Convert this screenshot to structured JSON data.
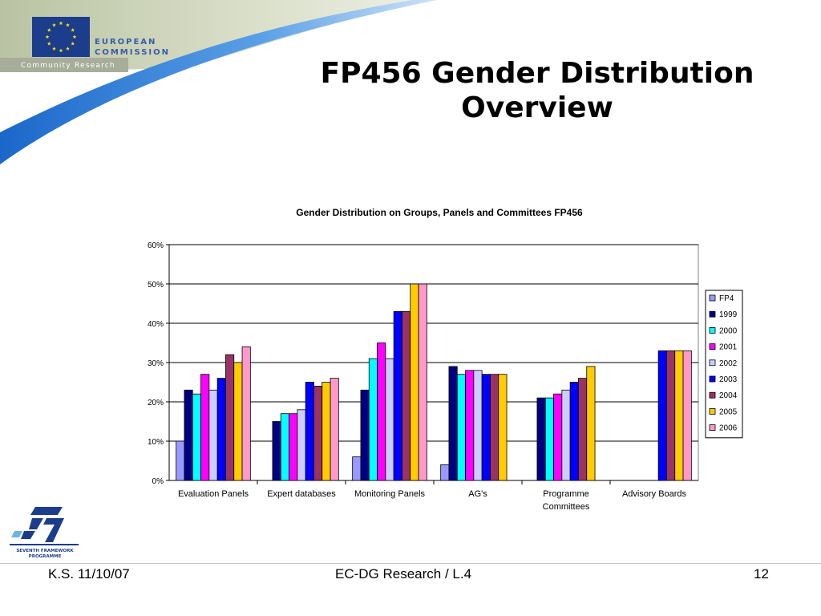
{
  "header": {
    "org_line1": "EUROPEAN",
    "org_line2": "COMMISSION",
    "tagline": "Community Research"
  },
  "slide": {
    "title_line1": "FP456 Gender Distribution",
    "title_line2": "Overview"
  },
  "logo": {
    "fp7_line1": "SEVENTH FRAMEWORK",
    "fp7_line2": "PROGRAMME"
  },
  "footer": {
    "left": "K.S. 11/10/07",
    "center": "EC-DG Research / L.4",
    "right": "12"
  },
  "colors": {
    "ec_blue": "#1b3d8c",
    "flag_star": "#ffdd00"
  },
  "chart_data": {
    "type": "bar",
    "title": "Gender Distribution on Groups, Panels and Committees FP456",
    "categories": [
      "Evaluation Panels",
      "Expert databases",
      "Monitoring Panels",
      "AG's",
      "Programme Committees",
      "Advisory Boards"
    ],
    "category_lines": [
      [
        "Evaluation Panels"
      ],
      [
        "Expert databases"
      ],
      [
        "Monitoring Panels"
      ],
      [
        "AG's"
      ],
      [
        "Programme",
        "Committees"
      ],
      [
        "Advisory Boards"
      ]
    ],
    "ylim": [
      0,
      60
    ],
    "yticks": [
      0,
      10,
      20,
      30,
      40,
      50,
      60
    ],
    "y_tick_labels": [
      "0%",
      "10%",
      "20%",
      "30%",
      "40%",
      "50%",
      "60%"
    ],
    "grid": true,
    "legend_position": "right",
    "series": [
      {
        "name": "FP4",
        "color": "#9999ff",
        "values": [
          10,
          null,
          6,
          4,
          null,
          null
        ]
      },
      {
        "name": "1999",
        "color": "#000080",
        "values": [
          23,
          15,
          23,
          29,
          21,
          null
        ]
      },
      {
        "name": "2000",
        "color": "#00ffff",
        "values": [
          22,
          17,
          31,
          27,
          21,
          null
        ]
      },
      {
        "name": "2001",
        "color": "#ff00ff",
        "values": [
          27,
          17,
          35,
          28,
          22,
          null
        ]
      },
      {
        "name": "2002",
        "color": "#ccccff",
        "values": [
          23,
          18,
          31,
          28,
          23,
          null
        ]
      },
      {
        "name": "2003",
        "color": "#0000ff",
        "values": [
          26,
          25,
          43,
          27,
          25,
          33
        ]
      },
      {
        "name": "2004",
        "color": "#993366",
        "values": [
          32,
          24,
          43,
          27,
          26,
          33
        ]
      },
      {
        "name": "2005",
        "color": "#ffcc00",
        "values": [
          30,
          25,
          50,
          27,
          29,
          33
        ]
      },
      {
        "name": "2006",
        "color": "#ff99cc",
        "values": [
          34,
          26,
          50,
          null,
          null,
          33
        ]
      }
    ]
  }
}
